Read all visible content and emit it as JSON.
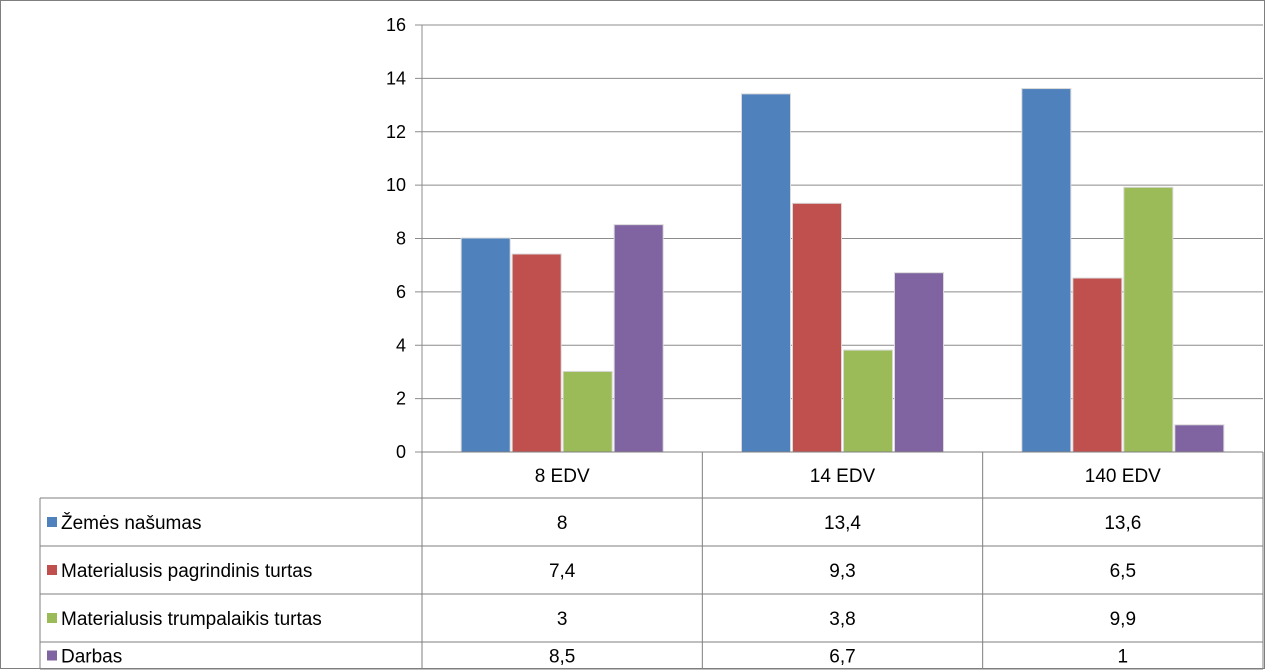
{
  "chart_data": {
    "type": "bar",
    "categories": [
      "8 EDV",
      "14 EDV",
      "140  EDV"
    ],
    "series": [
      {
        "name": "Žemės našumas",
        "values": [
          8,
          13.4,
          13.6
        ],
        "labels": [
          "8",
          "13,4",
          "13,6"
        ],
        "color": "#4f81bd"
      },
      {
        "name": "Materialusis pagrindinis turtas",
        "values": [
          7.4,
          9.3,
          6.5
        ],
        "labels": [
          "7,4",
          "9,3",
          "6,5"
        ],
        "color": "#c0504d"
      },
      {
        "name": "Materialusis trumpalaikis turtas",
        "values": [
          3,
          3.8,
          9.9
        ],
        "labels": [
          "3",
          "3,8",
          "9,9"
        ],
        "color": "#9bbb59"
      },
      {
        "name": "Darbas",
        "values": [
          8.5,
          6.7,
          1
        ],
        "labels": [
          "8,5",
          "6,7",
          "1"
        ],
        "color": "#8064a2"
      }
    ],
    "ylim": [
      0,
      16
    ],
    "yticks": [
      0,
      2,
      4,
      6,
      8,
      10,
      12,
      14,
      16
    ],
    "grid": true,
    "legend": "data table below chart"
  }
}
